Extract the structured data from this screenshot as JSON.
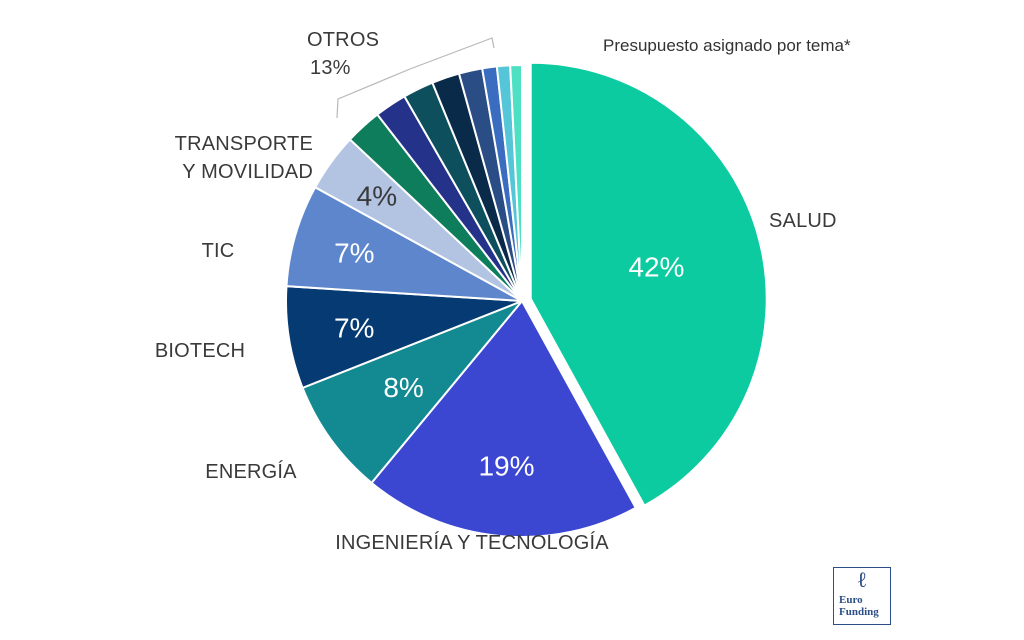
{
  "chart_data": {
    "type": "pie",
    "title": "Presupuesto asignado por tema*",
    "slices": [
      {
        "label": "SALUD",
        "value": 42,
        "pct_label": "42%",
        "color": "#0ccba0"
      },
      {
        "label": "INGENIERÍA Y TECNOLOGÍA",
        "value": 19,
        "pct_label": "19%",
        "color": "#3b47d1"
      },
      {
        "label": "ENERGÍA",
        "value": 8,
        "pct_label": "8%",
        "color": "#138a91"
      },
      {
        "label": "BIOTECH",
        "value": 7,
        "pct_label": "7%",
        "color": "#053b72"
      },
      {
        "label": "TIC",
        "value": 7,
        "pct_label": "7%",
        "color": "#5d86cc"
      },
      {
        "label": "TRANSPORTE Y MOVILIDAD",
        "value": 4,
        "pct_label": "4%",
        "color": "#b3c4e3"
      }
    ],
    "otros": {
      "label": "OTROS",
      "value": 13,
      "pct_label": "13%",
      "sub_slices": [
        {
          "value": 2.5,
          "color": "#0e7d5c"
        },
        {
          "value": 2.2,
          "color": "#25328a"
        },
        {
          "value": 2.1,
          "color": "#0d4f5c"
        },
        {
          "value": 1.9,
          "color": "#0a2a4a"
        },
        {
          "value": 1.6,
          "color": "#2a4d86"
        },
        {
          "value": 1.0,
          "color": "#3a6cbf"
        },
        {
          "value": 0.9,
          "color": "#55c6d8"
        },
        {
          "value": 0.8,
          "color": "#4ee0c2"
        }
      ]
    }
  },
  "logo": {
    "name": "eurofunding-logo",
    "line1": "Euro",
    "line2": "Funding"
  }
}
